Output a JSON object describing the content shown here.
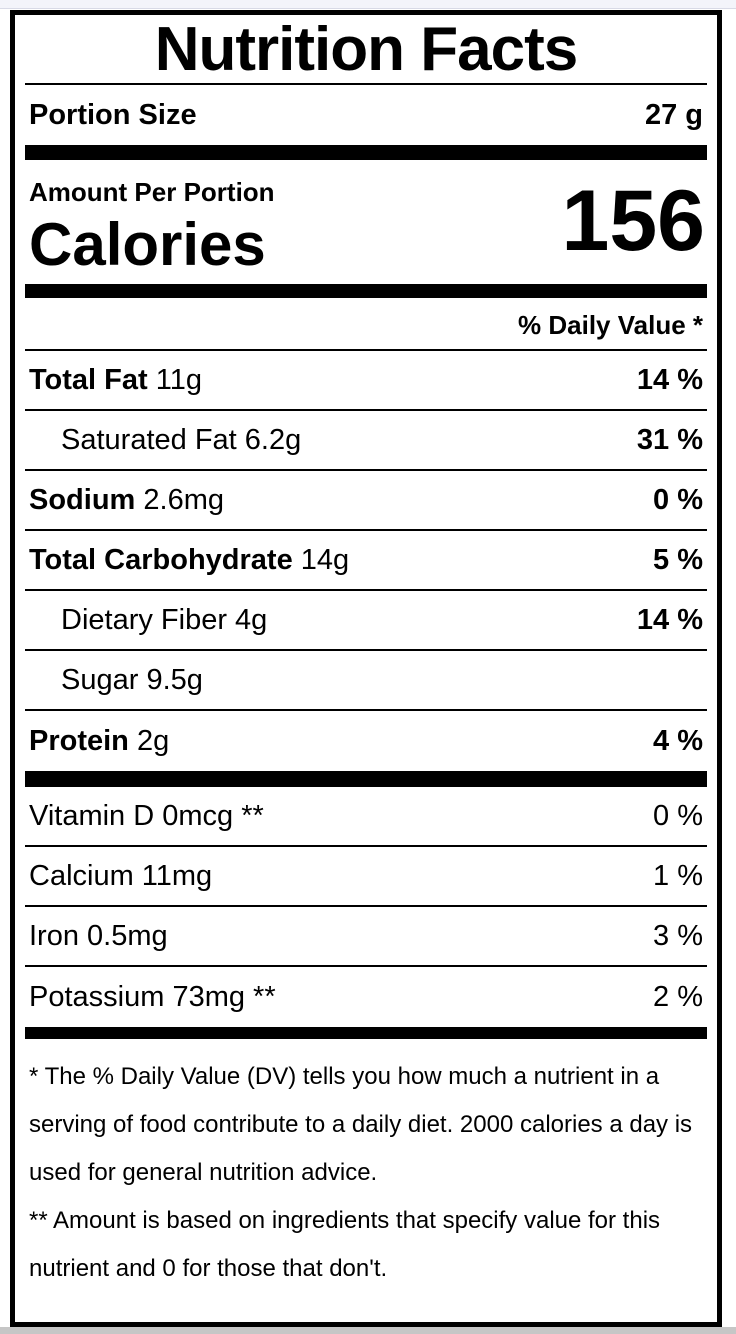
{
  "title": "Nutrition Facts",
  "portion": {
    "label": "Portion Size",
    "value": "27 g"
  },
  "calories": {
    "header": "Amount Per Portion",
    "label": "Calories",
    "value": "156"
  },
  "daily_value_header": "% Daily Value *",
  "nutrients": [
    {
      "name": "Total Fat",
      "rest": " 11g",
      "dv": "14 %"
    },
    {
      "name": "",
      "rest": "Saturated Fat 6.2g",
      "dv": "31 %"
    },
    {
      "name": "Sodium",
      "rest": " 2.6mg",
      "dv": "0 %"
    },
    {
      "name": "Total Carbohydrate",
      "rest": " 14g",
      "dv": "5 %"
    },
    {
      "name": "",
      "rest": "Dietary Fiber 4g",
      "dv": "14 %"
    },
    {
      "name": "",
      "rest": "Sugar 9.5g",
      "dv": ""
    },
    {
      "name": "Protein",
      "rest": " 2g",
      "dv": "4 %"
    }
  ],
  "vitamins": [
    {
      "label": "Vitamin D 0mcg **",
      "dv": "0 %"
    },
    {
      "label": "Calcium 11mg",
      "dv": "1 %"
    },
    {
      "label": "Iron 0.5mg",
      "dv": "3 %"
    },
    {
      "label": "Potassium 73mg **",
      "dv": "2 %"
    }
  ],
  "footnotes": [
    "* The % Daily Value (DV) tells you how much a nutrient in a serving of food contribute to a daily diet. 2000 calories a day is used for general nutrition advice.",
    "** Amount is based on ingredients that specify value for this nutrient and 0 for those that don't."
  ],
  "colors": {
    "text": "#000000",
    "label_bg": "#ffffff",
    "top_strip": "#f3f4fa",
    "bottom_strip": "#c6c6c6"
  }
}
